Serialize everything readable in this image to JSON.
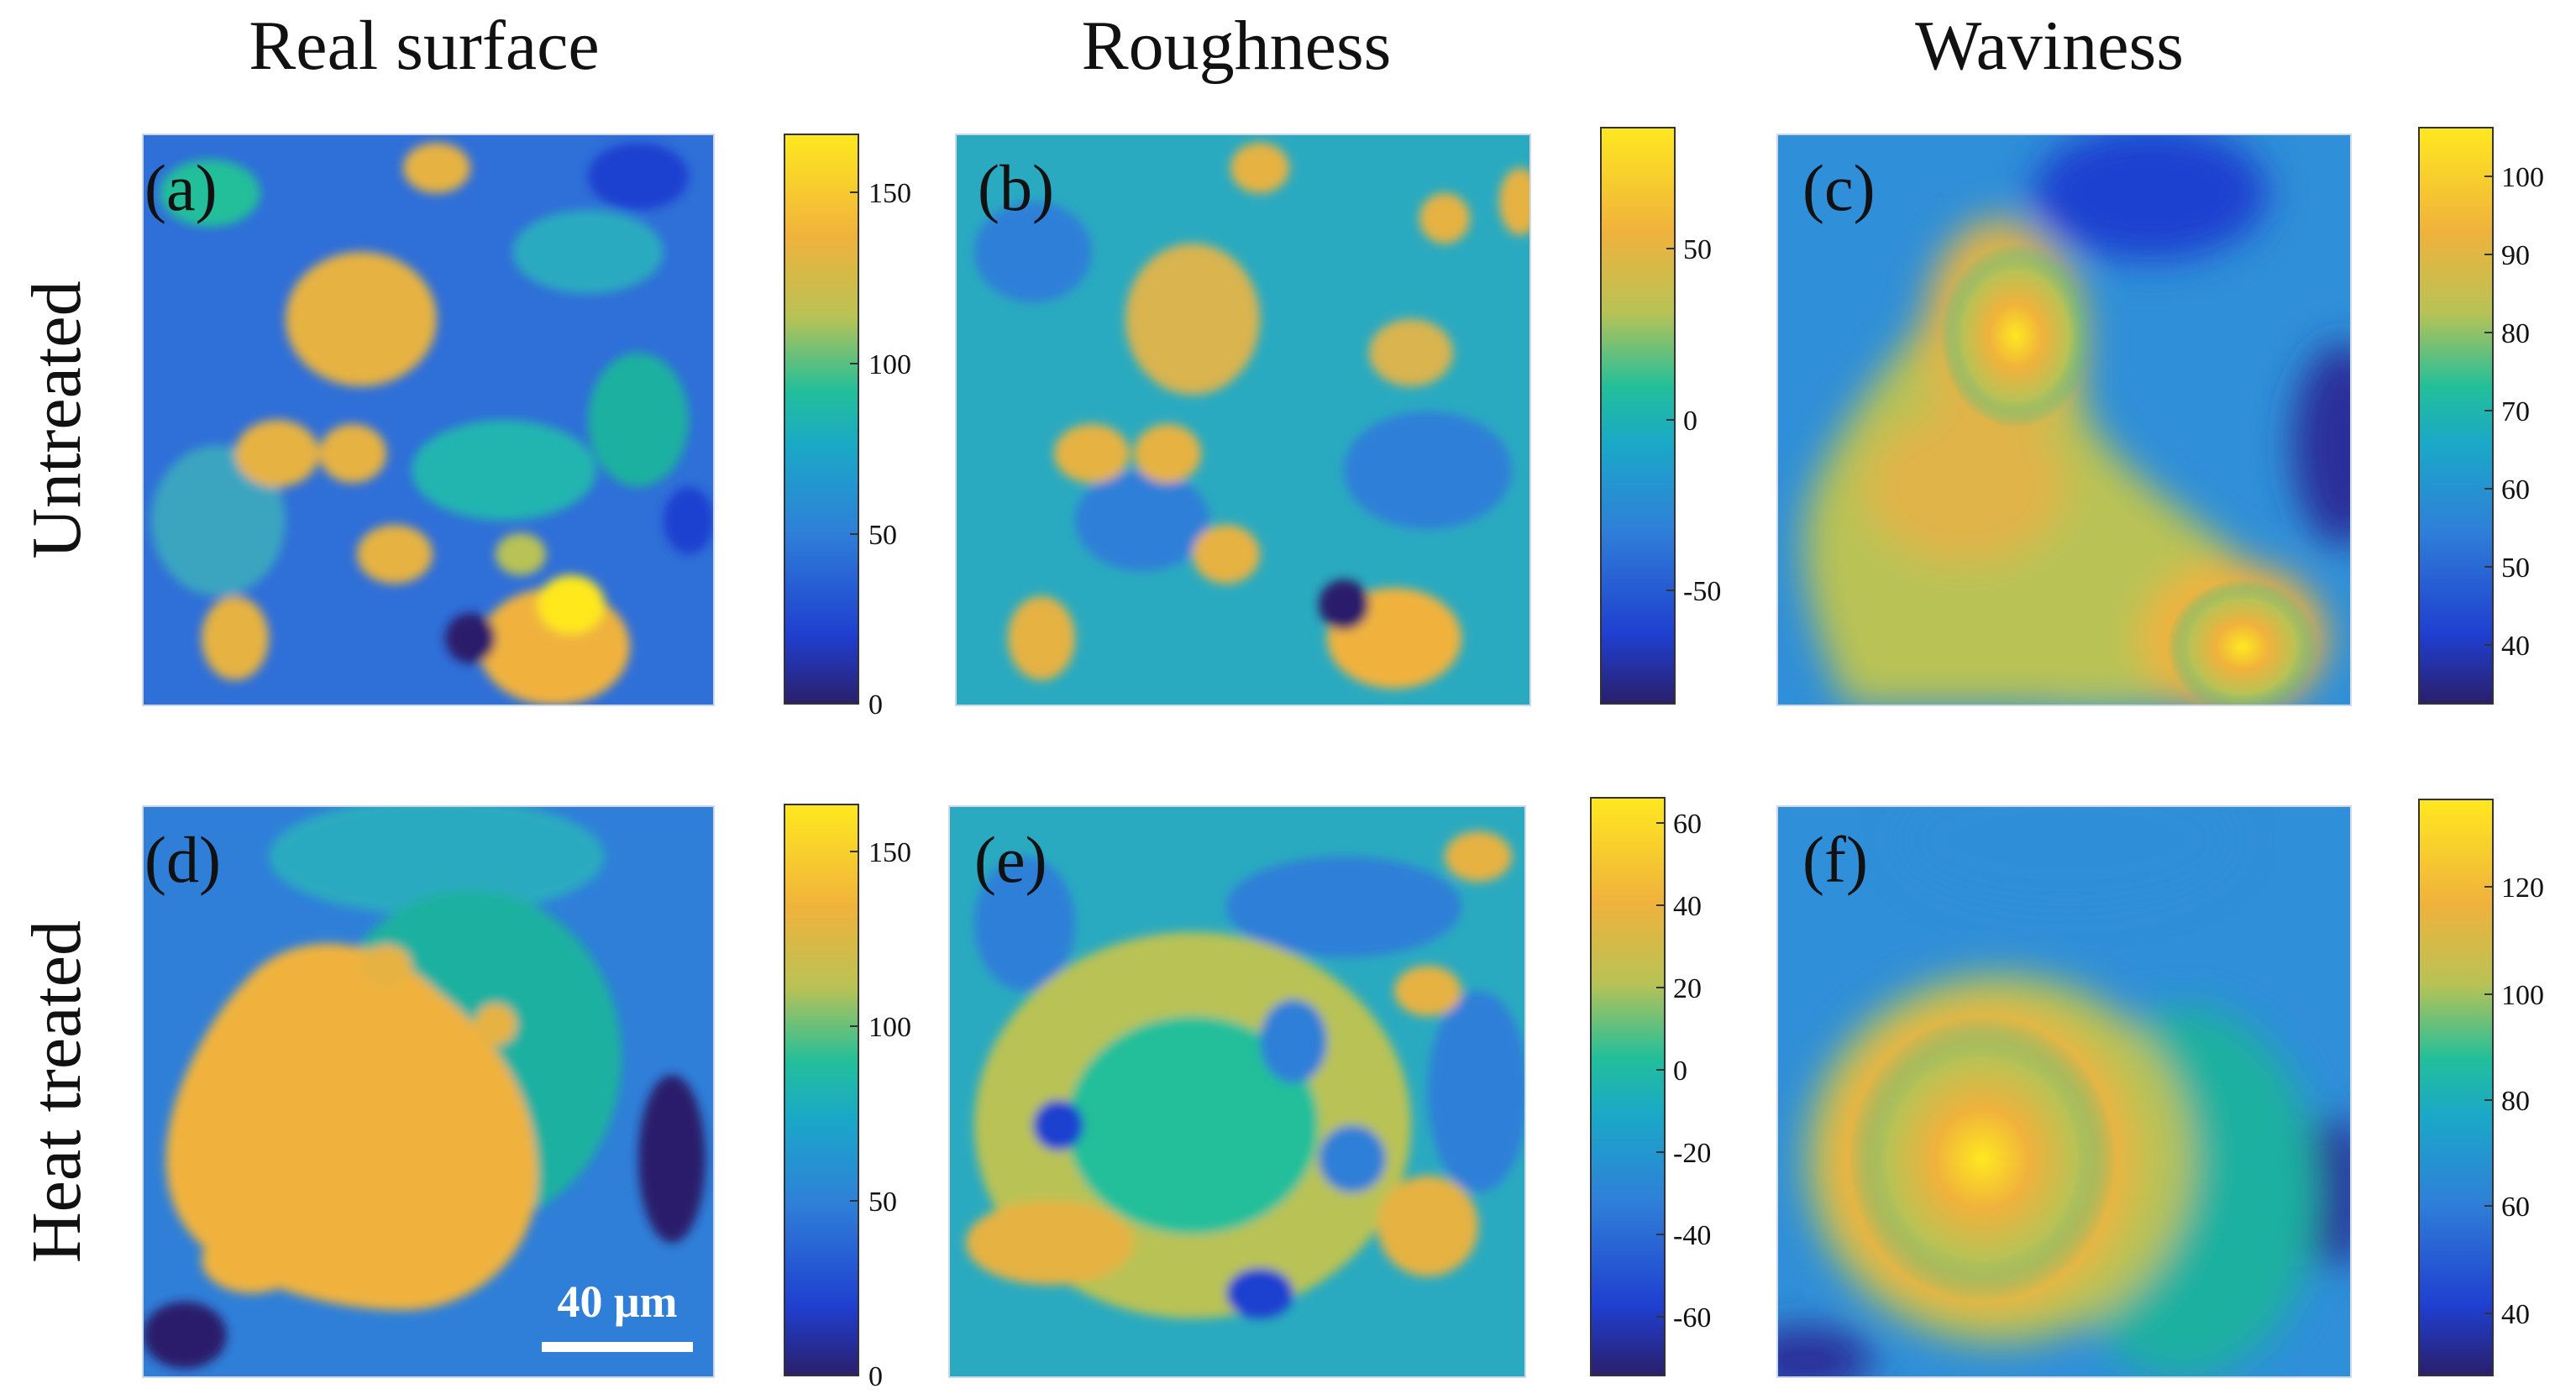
{
  "figure": {
    "column_titles": [
      "Real surface",
      "Roughness",
      "Waviness"
    ],
    "row_titles": [
      "Untreated",
      "Heat treated"
    ],
    "scale_bar_label": "40 μm",
    "colormap_stops": [
      "#2a1f6b",
      "#1f3fd0",
      "#2f7fd8",
      "#1aa8c8",
      "#22bf9a",
      "#b9c255",
      "#f0b23c",
      "#ffe81f"
    ],
    "panels": [
      {
        "id": "a",
        "label": "(a)",
        "ticks": [
          "150",
          "100",
          "50",
          "0"
        ]
      },
      {
        "id": "b",
        "label": "(b)",
        "ticks": [
          "50",
          "0",
          "-50"
        ]
      },
      {
        "id": "c",
        "label": "(c)",
        "ticks": [
          "100",
          "90",
          "80",
          "70",
          "60",
          "50",
          "40"
        ]
      },
      {
        "id": "d",
        "label": "(d)",
        "ticks": [
          "150",
          "100",
          "50",
          "0"
        ]
      },
      {
        "id": "e",
        "label": "(e)",
        "ticks": [
          "60",
          "40",
          "20",
          "0",
          "-20",
          "-40",
          "-60"
        ]
      },
      {
        "id": "f",
        "label": "(f)",
        "ticks": [
          "120",
          "100",
          "80",
          "60",
          "40"
        ]
      }
    ]
  }
}
